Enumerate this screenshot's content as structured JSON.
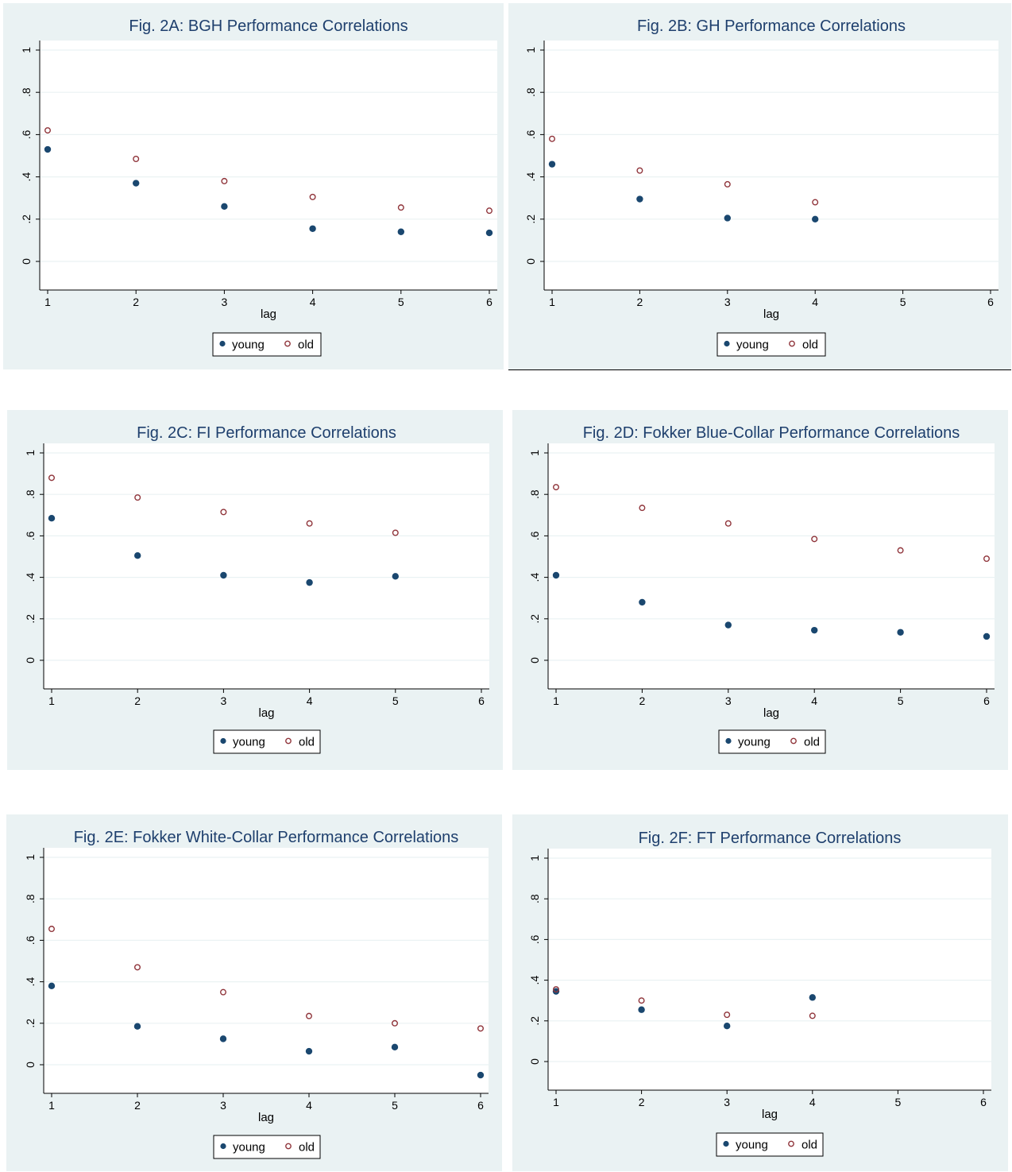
{
  "colors": {
    "outer_bg": "#eaf2f3",
    "plot_bg": "#ffffff",
    "grid": "#eaf2f3",
    "title": "#1e3f6d",
    "young": "#1a476f",
    "old": "#90353b",
    "axis": "#000000"
  },
  "chart_data": [
    {
      "type": "scatter",
      "title": "Fig. 2A: BGH Performance Correlations",
      "xlabel": "lag",
      "ylabel": "",
      "xlim": [
        1,
        6
      ],
      "ylim": [
        0,
        1
      ],
      "xticks": [
        "1",
        "2",
        "3",
        "4",
        "5",
        "6"
      ],
      "yticks": [
        "0",
        ".2",
        ".4",
        ".6",
        ".8",
        "1"
      ],
      "grid": true,
      "legend_position": "bottom",
      "x": [
        1,
        2,
        3,
        4,
        5,
        6
      ],
      "series": [
        {
          "name": "young",
          "marker": "filled-circle",
          "values": [
            0.53,
            0.37,
            0.26,
            0.155,
            0.14,
            0.135
          ]
        },
        {
          "name": "old",
          "marker": "hollow-circle",
          "values": [
            0.62,
            0.485,
            0.38,
            0.305,
            0.255,
            0.24
          ]
        }
      ]
    },
    {
      "type": "scatter",
      "title": "Fig. 2B: GH Performance Correlations",
      "xlabel": "lag",
      "ylabel": "",
      "xlim": [
        1,
        6
      ],
      "ylim": [
        0,
        1
      ],
      "xticks": [
        "1",
        "2",
        "3",
        "4",
        "5",
        "6"
      ],
      "yticks": [
        "0",
        ".2",
        ".4",
        ".6",
        ".8",
        "1"
      ],
      "grid": true,
      "legend_position": "bottom",
      "x": [
        1,
        2,
        3,
        4
      ],
      "series": [
        {
          "name": "young",
          "marker": "filled-circle",
          "values": [
            0.46,
            0.295,
            0.205,
            0.2
          ]
        },
        {
          "name": "old",
          "marker": "hollow-circle",
          "values": [
            0.58,
            0.43,
            0.365,
            0.28
          ]
        }
      ]
    },
    {
      "type": "scatter",
      "title": "Fig. 2C: FI Performance Correlations",
      "xlabel": "lag",
      "ylabel": "",
      "xlim": [
        1,
        6
      ],
      "ylim": [
        0,
        1
      ],
      "xticks": [
        "1",
        "2",
        "3",
        "4",
        "5",
        "6"
      ],
      "yticks": [
        "0",
        ".2",
        ".4",
        ".6",
        ".8",
        "1"
      ],
      "grid": true,
      "legend_position": "bottom",
      "x": [
        1,
        2,
        3,
        4,
        5
      ],
      "series": [
        {
          "name": "young",
          "marker": "filled-circle",
          "values": [
            0.685,
            0.505,
            0.41,
            0.375,
            0.405
          ]
        },
        {
          "name": "old",
          "marker": "hollow-circle",
          "values": [
            0.88,
            0.785,
            0.715,
            0.66,
            0.615
          ]
        }
      ]
    },
    {
      "type": "scatter",
      "title": "Fig. 2D: Fokker Blue-Collar Performance Correlations",
      "xlabel": "lag",
      "ylabel": "",
      "xlim": [
        1,
        6
      ],
      "ylim": [
        0,
        1
      ],
      "xticks": [
        "1",
        "2",
        "3",
        "4",
        "5",
        "6"
      ],
      "yticks": [
        "0",
        ".2",
        ".4",
        ".6",
        ".8",
        "1"
      ],
      "grid": true,
      "legend_position": "bottom",
      "x": [
        1,
        2,
        3,
        4,
        5,
        6
      ],
      "series": [
        {
          "name": "young",
          "marker": "filled-circle",
          "values": [
            0.41,
            0.28,
            0.17,
            0.145,
            0.135,
            0.115
          ]
        },
        {
          "name": "old",
          "marker": "hollow-circle",
          "values": [
            0.835,
            0.735,
            0.66,
            0.585,
            0.53,
            0.49
          ]
        }
      ]
    },
    {
      "type": "scatter",
      "title": "Fig. 2E: Fokker White-Collar Performance Correlations",
      "xlabel": "lag",
      "ylabel": "",
      "xlim": [
        1,
        6
      ],
      "ylim": [
        0,
        1
      ],
      "xticks": [
        "1",
        "2",
        "3",
        "4",
        "5",
        "6"
      ],
      "yticks": [
        "0",
        ".2",
        ".4",
        ".6",
        ".8",
        "1"
      ],
      "grid": true,
      "legend_position": "bottom",
      "x": [
        1,
        2,
        3,
        4,
        5,
        6
      ],
      "series": [
        {
          "name": "young",
          "marker": "filled-circle",
          "values": [
            0.38,
            0.185,
            0.125,
            0.065,
            0.085,
            -0.05
          ]
        },
        {
          "name": "old",
          "marker": "hollow-circle",
          "values": [
            0.655,
            0.47,
            0.35,
            0.235,
            0.2,
            0.175
          ]
        }
      ]
    },
    {
      "type": "scatter",
      "title": "Fig. 2F: FT Performance Correlations",
      "xlabel": "lag",
      "ylabel": "",
      "xlim": [
        1,
        6
      ],
      "ylim": [
        0,
        1
      ],
      "xticks": [
        "1",
        "2",
        "3",
        "4",
        "5",
        "6"
      ],
      "yticks": [
        "0",
        ".2",
        ".4",
        ".6",
        ".8",
        "1"
      ],
      "grid": true,
      "legend_position": "bottom",
      "x": [
        1,
        2,
        3,
        4
      ],
      "series": [
        {
          "name": "young",
          "marker": "filled-circle",
          "values": [
            0.345,
            0.255,
            0.175,
            0.315
          ]
        },
        {
          "name": "old",
          "marker": "hollow-circle",
          "values": [
            0.355,
            0.3,
            0.23,
            0.225
          ]
        }
      ]
    }
  ]
}
